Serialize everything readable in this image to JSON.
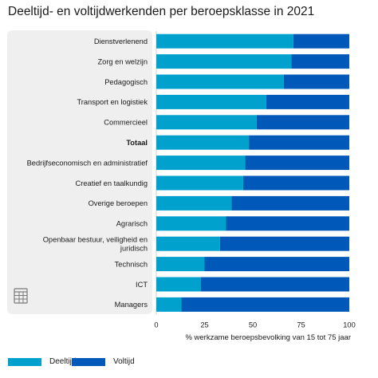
{
  "chart_data": {
    "type": "bar",
    "orientation": "horizontal",
    "stacked": true,
    "title": "Deeltijd- en voltijdwerkenden per beroepsklasse in 2021",
    "xlabel": "% werkzame beroepsbevolking van 15 tot 75 jaar",
    "ylabel": "",
    "xlim": [
      0,
      100
    ],
    "xticks": [
      "0",
      "25",
      "50",
      "75",
      "100"
    ],
    "grid": false,
    "legend_position": "bottom-left",
    "categories": [
      "Dienstverlenend",
      "Zorg en welzijn",
      "Pedagogisch",
      "Transport en logistiek",
      "Commercieel",
      "Totaal",
      "Bedrijfseconomisch en administratief",
      "Creatief en taalkundig",
      "Overige beroepen",
      "Agrarisch",
      "Openbaar bestuur, veiligheid en juridisch",
      "Technisch",
      "ICT",
      "Managers"
    ],
    "bold_categories": [
      "Totaal"
    ],
    "series": [
      {
        "name": "Deeltijd",
        "color": "#00a1cd",
        "values": [
          71,
          70,
          66,
          57,
          52,
          48,
          46,
          45,
          39,
          36,
          33,
          25,
          23,
          13
        ]
      },
      {
        "name": "Voltijd",
        "color": "#0058b8",
        "values": [
          29,
          30,
          34,
          43,
          48,
          52,
          54,
          55,
          61,
          64,
          67,
          75,
          77,
          87
        ]
      }
    ]
  },
  "icons": {
    "table_toggle": "table-icon"
  }
}
